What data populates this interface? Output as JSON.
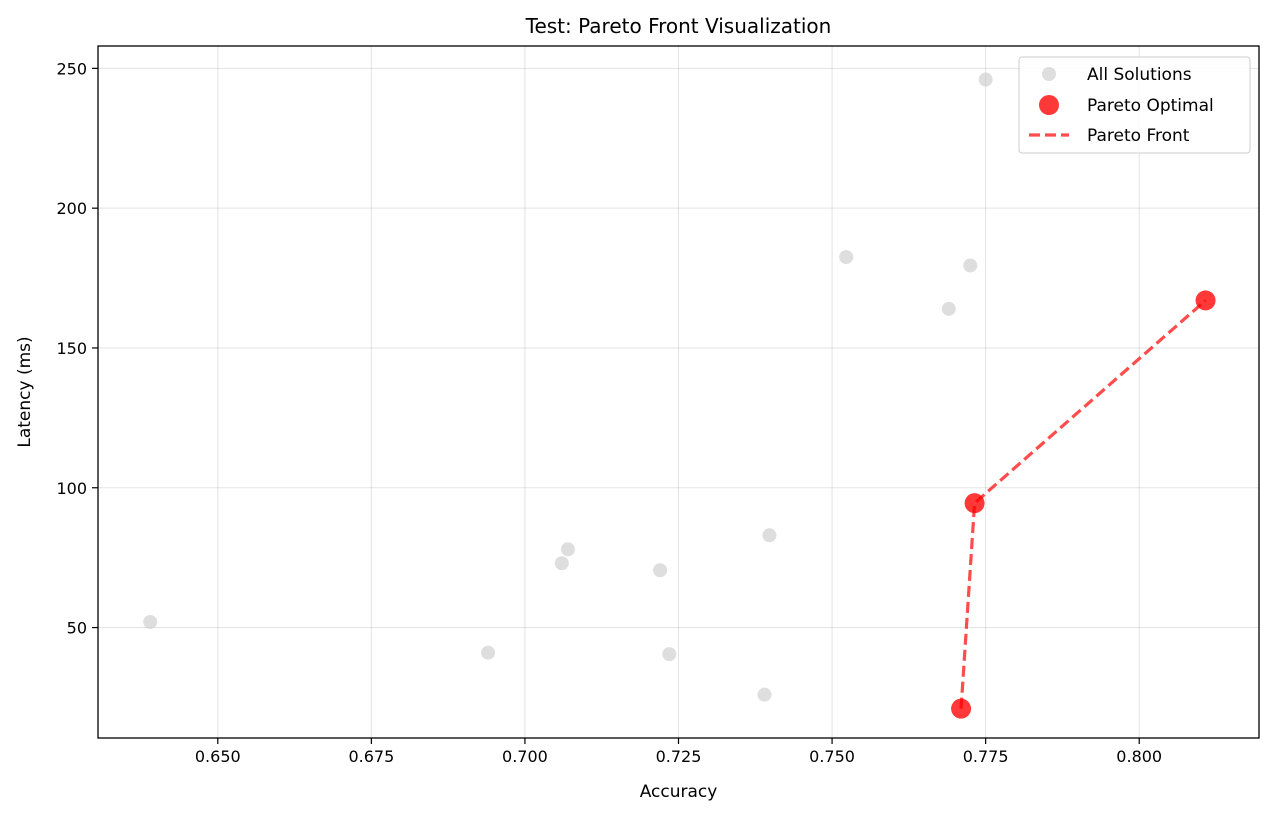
{
  "chart_data": {
    "type": "scatter",
    "title": "Test: Pareto Front Visualization",
    "xlabel": "Accuracy",
    "ylabel": "Latency (ms)",
    "xlim": [
      0.6305,
      0.8195
    ],
    "ylim": [
      10.5,
      258
    ],
    "xticks": [
      0.65,
      0.675,
      0.7,
      0.725,
      0.75,
      0.775,
      0.8
    ],
    "xtick_labels": [
      "0.650",
      "0.675",
      "0.700",
      "0.725",
      "0.750",
      "0.775",
      "0.800"
    ],
    "yticks": [
      50,
      100,
      150,
      200,
      250
    ],
    "ytick_labels": [
      "50",
      "100",
      "150",
      "200",
      "250"
    ],
    "grid": true,
    "legend_position": "top-right",
    "series": [
      {
        "name": "All Solutions",
        "kind": "scatter",
        "color": "#c8c8c8",
        "points": [
          {
            "x": 0.639,
            "y": 52.0
          },
          {
            "x": 0.694,
            "y": 41.0
          },
          {
            "x": 0.706,
            "y": 73.0
          },
          {
            "x": 0.707,
            "y": 78.0
          },
          {
            "x": 0.722,
            "y": 70.5
          },
          {
            "x": 0.7235,
            "y": 40.5
          },
          {
            "x": 0.739,
            "y": 26.0
          },
          {
            "x": 0.7398,
            "y": 83.0
          },
          {
            "x": 0.7523,
            "y": 182.5
          },
          {
            "x": 0.769,
            "y": 164.0
          },
          {
            "x": 0.7725,
            "y": 179.5
          },
          {
            "x": 0.775,
            "y": 246.0
          }
        ]
      },
      {
        "name": "Pareto Optimal",
        "kind": "scatter",
        "color": "#ff0000",
        "points": [
          {
            "x": 0.771,
            "y": 21.0
          },
          {
            "x": 0.7732,
            "y": 94.5
          },
          {
            "x": 0.8108,
            "y": 167.0
          }
        ]
      },
      {
        "name": "Pareto Front",
        "kind": "line",
        "color": "#ff0000",
        "style": "dashed",
        "points": [
          {
            "x": 0.771,
            "y": 21.0
          },
          {
            "x": 0.7732,
            "y": 94.5
          },
          {
            "x": 0.8108,
            "y": 167.0
          }
        ]
      }
    ]
  }
}
